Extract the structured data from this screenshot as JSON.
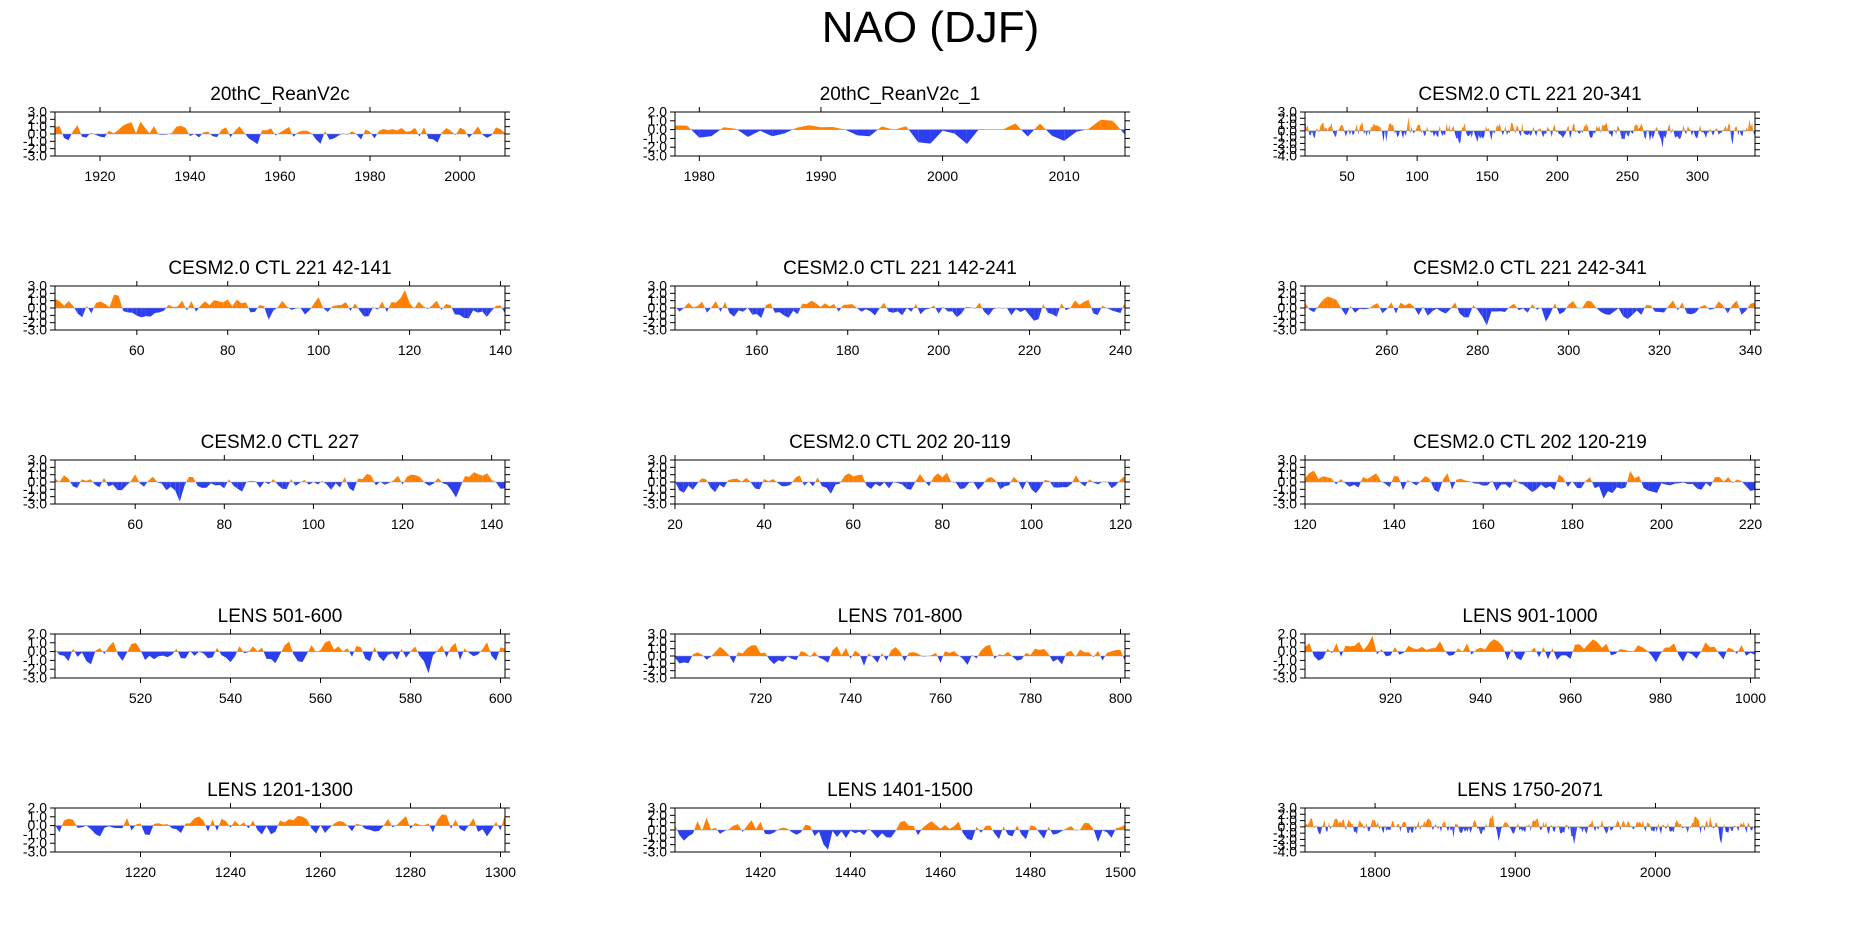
{
  "title": "NAO (DJF)",
  "colors": {
    "positive": "#ff8000",
    "negative": "#2c3fef",
    "axis": "#000000"
  },
  "chart_data": [
    {
      "type": "area",
      "title": "20thC_ReanV2c",
      "xlim": [
        1910,
        2010
      ],
      "ylim": [
        -3,
        3
      ],
      "yticks": [
        3,
        2,
        1,
        0,
        -1,
        -2,
        -3
      ],
      "yticklabels": [
        "3.0",
        "2.0",
        "1.0",
        "0.0",
        "-1.0",
        "-2.0",
        "-3.0"
      ],
      "xticks": [
        1920,
        1940,
        1960,
        1980,
        2000
      ],
      "seed": 11,
      "scale": 1.0,
      "step": 1
    },
    {
      "type": "area",
      "title": "20thC_ReanV2c_1",
      "xlim": [
        1978,
        2015
      ],
      "ylim": [
        -3,
        2
      ],
      "yticks": [
        2,
        1,
        0,
        -1,
        -2,
        -3
      ],
      "yticklabels": [
        "2.0",
        "1.0",
        "0.0",
        "-1.0",
        "-2.0",
        "-3.0"
      ],
      "xticks": [
        1980,
        1990,
        2000,
        2010
      ],
      "seed": 23,
      "scale": 1.0,
      "step": 1
    },
    {
      "type": "area",
      "title": "CESM2.0 CTL 221 20-341",
      "xlim": [
        20,
        341
      ],
      "ylim": [
        -4,
        3
      ],
      "yticks": [
        3,
        2,
        1,
        0,
        -1,
        -2,
        -3,
        -4
      ],
      "yticklabels": [
        "3.0",
        "2.0",
        "1.0",
        "0.0",
        "-1.0",
        "-2.0",
        "-3.0",
        "-4.0"
      ],
      "xticks": [
        50,
        100,
        150,
        200,
        250,
        300
      ],
      "seed": 37,
      "scale": 1.0,
      "step": 1
    },
    {
      "type": "area",
      "title": "CESM2.0 CTL 221 42-141",
      "xlim": [
        42,
        141
      ],
      "ylim": [
        -3,
        3
      ],
      "yticks": [
        3,
        2,
        1,
        0,
        -1,
        -2,
        -3
      ],
      "yticklabels": [
        "3.0",
        "2.0",
        "1.0",
        "0.0",
        "-1.0",
        "-2.0",
        "-3.0"
      ],
      "xticks": [
        60,
        80,
        100,
        120,
        140
      ],
      "seed": 41,
      "scale": 1.0,
      "step": 1
    },
    {
      "type": "area",
      "title": "CESM2.0 CTL 221 142-241",
      "xlim": [
        142,
        241
      ],
      "ylim": [
        -3,
        3
      ],
      "yticks": [
        3,
        2,
        1,
        0,
        -1,
        -2,
        -3
      ],
      "yticklabels": [
        "3.0",
        "2.0",
        "1.0",
        "0.0",
        "-1.0",
        "-2.0",
        "-3.0"
      ],
      "xticks": [
        160,
        180,
        200,
        220,
        240
      ],
      "seed": 53,
      "scale": 1.0,
      "step": 1
    },
    {
      "type": "area",
      "title": "CESM2.0 CTL 221 242-341",
      "xlim": [
        242,
        341
      ],
      "ylim": [
        -3,
        3
      ],
      "yticks": [
        3,
        2,
        1,
        0,
        -1,
        -2,
        -3
      ],
      "yticklabels": [
        "3.0",
        "2.0",
        "1.0",
        "0.0",
        "-1.0",
        "-2.0",
        "-3.0"
      ],
      "xticks": [
        260,
        280,
        300,
        320,
        340
      ],
      "seed": 67,
      "scale": 1.0,
      "step": 1
    },
    {
      "type": "area",
      "title": "CESM2.0 CTL 227",
      "xlim": [
        42,
        143
      ],
      "ylim": [
        -3,
        3
      ],
      "yticks": [
        3,
        2,
        1,
        0,
        -1,
        -2,
        -3
      ],
      "yticklabels": [
        "3.0",
        "2.0",
        "1.0",
        "0.0",
        "-1.0",
        "-2.0",
        "-3.0"
      ],
      "xticks": [
        60,
        80,
        100,
        120,
        140
      ],
      "seed": 71,
      "scale": 1.0,
      "step": 1
    },
    {
      "type": "area",
      "title": "CESM2.0 CTL 202 20-119",
      "xlim": [
        20,
        121
      ],
      "ylim": [
        -3,
        3
      ],
      "yticks": [
        3,
        2,
        1,
        0,
        -1,
        -2,
        -3
      ],
      "yticklabels": [
        "3.0",
        "2.0",
        "1.0",
        "0.0",
        "-1.0",
        "-2.0",
        "-3.0"
      ],
      "xticks": [
        20,
        40,
        60,
        80,
        100,
        120
      ],
      "seed": 83,
      "scale": 1.0,
      "step": 1
    },
    {
      "type": "area",
      "title": "CESM2.0 CTL 202 120-219",
      "xlim": [
        120,
        221
      ],
      "ylim": [
        -3,
        3
      ],
      "yticks": [
        3,
        2,
        1,
        0,
        -1,
        -2,
        -3
      ],
      "yticklabels": [
        "3.0",
        "2.0",
        "1.0",
        "0.0",
        "-1.0",
        "-2.0",
        "-3.0"
      ],
      "xticks": [
        120,
        140,
        160,
        180,
        200,
        220
      ],
      "seed": 97,
      "scale": 1.0,
      "step": 1
    },
    {
      "type": "area",
      "title": "LENS 501-600",
      "xlim": [
        501,
        601
      ],
      "ylim": [
        -3,
        2
      ],
      "yticks": [
        2,
        1,
        0,
        -1,
        -2,
        -3
      ],
      "yticklabels": [
        "2.0",
        "1.0",
        "0.0",
        "-1.0",
        "-2.0",
        "-3.0"
      ],
      "xticks": [
        520,
        540,
        560,
        580,
        600
      ],
      "seed": 101,
      "scale": 1.0,
      "step": 1
    },
    {
      "type": "area",
      "title": "LENS 701-800",
      "xlim": [
        701,
        801
      ],
      "ylim": [
        -3,
        3
      ],
      "yticks": [
        3,
        2,
        1,
        0,
        -1,
        -2,
        -3
      ],
      "yticklabels": [
        "3.0",
        "2.0",
        "1.0",
        "0.0",
        "-1.0",
        "-2.0",
        "-3.0"
      ],
      "xticks": [
        720,
        740,
        760,
        780,
        800
      ],
      "seed": 113,
      "scale": 1.0,
      "step": 1
    },
    {
      "type": "area",
      "title": "LENS 901-1000",
      "xlim": [
        901,
        1001
      ],
      "ylim": [
        -3,
        2
      ],
      "yticks": [
        2,
        1,
        0,
        -1,
        -2,
        -3
      ],
      "yticklabels": [
        "2.0",
        "1.0",
        "0.0",
        "-1.0",
        "-2.0",
        "-3.0"
      ],
      "xticks": [
        920,
        940,
        960,
        980,
        1000
      ],
      "seed": 127,
      "scale": 1.0,
      "step": 1
    },
    {
      "type": "area",
      "title": "LENS 1201-1300",
      "xlim": [
        1201,
        1301
      ],
      "ylim": [
        -3,
        2
      ],
      "yticks": [
        2,
        1,
        0,
        -1,
        -2,
        -3
      ],
      "yticklabels": [
        "2.0",
        "1.0",
        "0.0",
        "-1.0",
        "-2.0",
        "-3.0"
      ],
      "xticks": [
        1220,
        1240,
        1260,
        1280,
        1300
      ],
      "seed": 131,
      "scale": 1.0,
      "step": 1
    },
    {
      "type": "area",
      "title": "LENS 1401-1500",
      "xlim": [
        1401,
        1501
      ],
      "ylim": [
        -3,
        3
      ],
      "yticks": [
        3,
        2,
        1,
        0,
        -1,
        -2,
        -3
      ],
      "yticklabels": [
        "3.0",
        "2.0",
        "1.0",
        "0.0",
        "-1.0",
        "-2.0",
        "-3.0"
      ],
      "xticks": [
        1420,
        1440,
        1460,
        1480,
        1500
      ],
      "seed": 149,
      "scale": 1.0,
      "step": 1
    },
    {
      "type": "area",
      "title": "LENS 1750-2071",
      "xlim": [
        1750,
        2071
      ],
      "ylim": [
        -4,
        3
      ],
      "yticks": [
        3,
        2,
        1,
        0,
        -1,
        -2,
        -3,
        -4
      ],
      "yticklabels": [
        "3.0",
        "2.0",
        "1.0",
        "0.0",
        "-1.0",
        "-2.0",
        "-3.0",
        "-4.0"
      ],
      "xticks": [
        1800,
        1900,
        2000
      ],
      "seed": 157,
      "scale": 1.0,
      "step": 1
    }
  ]
}
